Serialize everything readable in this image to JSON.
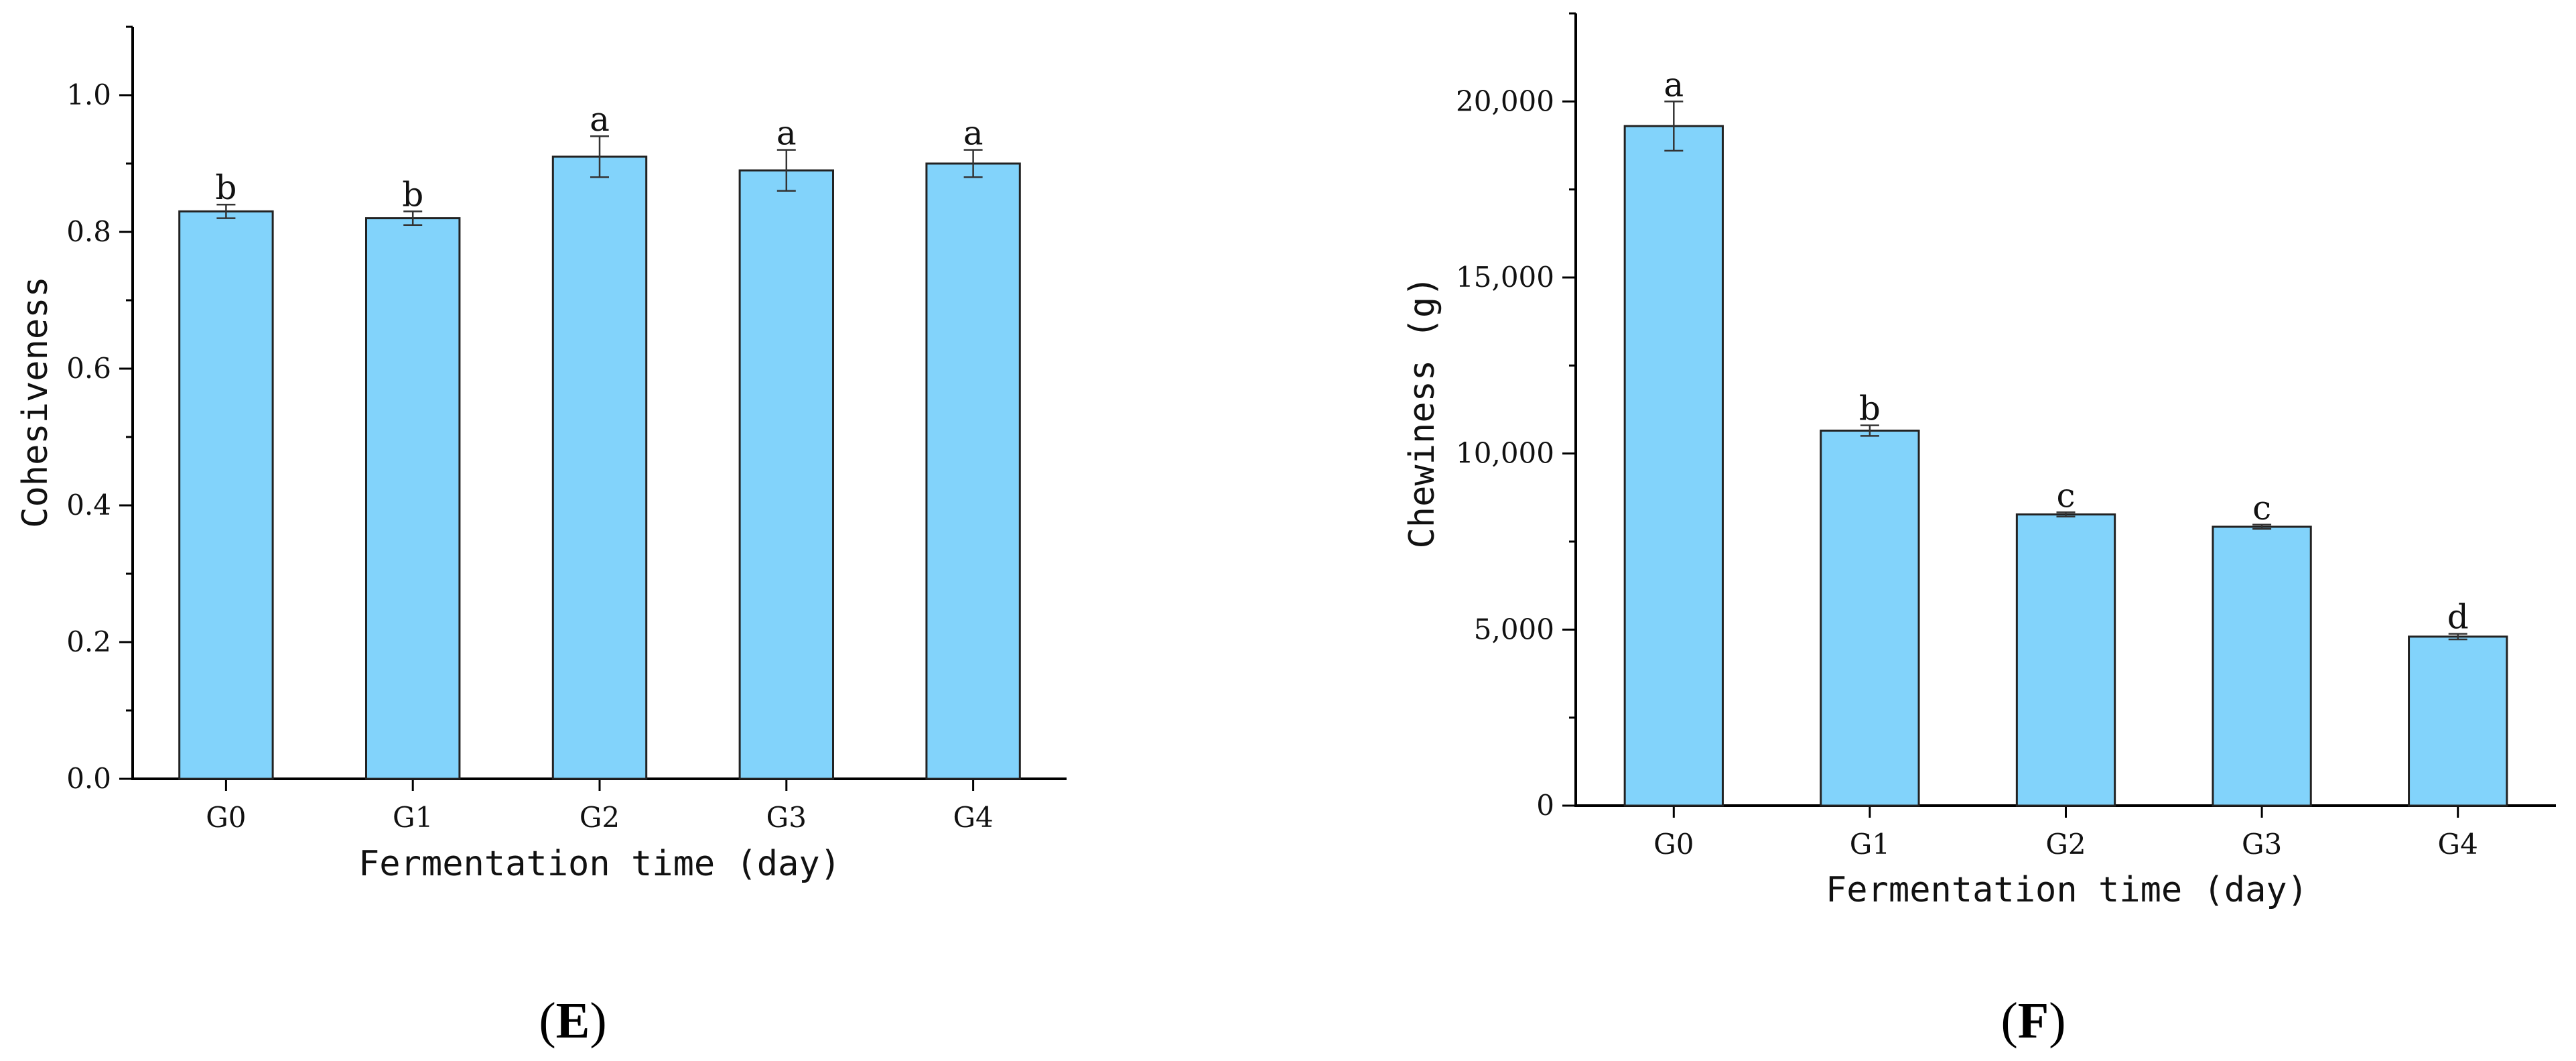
{
  "chart_data": [
    {
      "type": "bar",
      "panel_label": "E",
      "categories": [
        "G0",
        "G1",
        "G2",
        "G3",
        "G4"
      ],
      "values": [
        0.83,
        0.82,
        0.91,
        0.89,
        0.9
      ],
      "errors": [
        0.01,
        0.01,
        0.03,
        0.03,
        0.02
      ],
      "significance": [
        "b",
        "b",
        "a",
        "a",
        "a"
      ],
      "xlabel": "Fermentation time (day)",
      "ylabel": "Cohesiveness",
      "ylim": [
        0,
        1.1
      ],
      "yticks": [
        0.0,
        0.2,
        0.4,
        0.6,
        0.8,
        1.0
      ],
      "ytick_labels": [
        "0.0",
        "0.2",
        "0.4",
        "0.6",
        "0.8",
        "1.0"
      ],
      "grid": false,
      "bar_color": "#82d3fb"
    },
    {
      "type": "bar",
      "panel_label": "F",
      "categories": [
        "G0",
        "G1",
        "G2",
        "G3",
        "G4"
      ],
      "values": [
        19300,
        10650,
        8270,
        7920,
        4800
      ],
      "errors": [
        700,
        150,
        60,
        60,
        80
      ],
      "significance": [
        "a",
        "b",
        "c",
        "c",
        "d"
      ],
      "xlabel": "Fermentation time (day)",
      "ylabel": "Chewiness (g)",
      "ylim": [
        0,
        22500
      ],
      "yticks": [
        0,
        5000,
        10000,
        15000,
        20000
      ],
      "ytick_labels": [
        "0",
        "5,000",
        "10,000",
        "15,000",
        "20,000"
      ],
      "grid": false,
      "bar_color": "#82d3fb"
    }
  ]
}
